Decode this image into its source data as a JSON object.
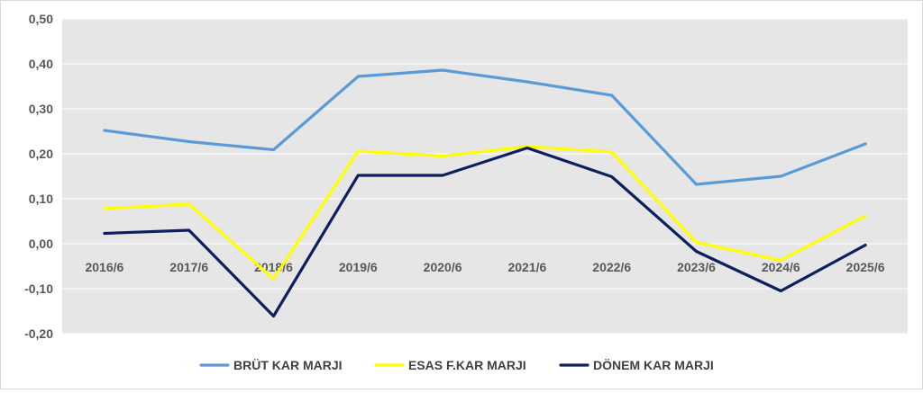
{
  "chart_data": {
    "type": "line",
    "title": "",
    "xlabel": "",
    "ylabel": "",
    "categories": [
      "2016/6",
      "2017/6",
      "2018/6",
      "2019/6",
      "2020/6",
      "2021/6",
      "2022/6",
      "2023/6",
      "2024/6",
      "2025/6"
    ],
    "ylim": [
      -0.2,
      0.5
    ],
    "yticks": [
      "-0,20",
      "-0,10",
      "0,00",
      "0,10",
      "0,20",
      "0,30",
      "0,40",
      "0,50"
    ],
    "grid": true,
    "legend_position": "bottom",
    "series": [
      {
        "name": "BRÜT KAR MARJI",
        "color": "#5b9bd5",
        "values": [
          0.252,
          0.227,
          0.209,
          0.372,
          0.386,
          0.36,
          0.33,
          0.132,
          0.15,
          0.222
        ]
      },
      {
        "name": "ESAS F.KAR MARJI",
        "color": "#ffff00",
        "values": [
          0.078,
          0.088,
          -0.078,
          0.206,
          0.195,
          0.216,
          0.204,
          0.003,
          -0.037,
          0.062
        ]
      },
      {
        "name": "DÖNEM KAR MARJI",
        "color": "#0d1f5c",
        "values": [
          0.023,
          0.03,
          -0.161,
          0.152,
          0.152,
          0.213,
          0.149,
          -0.017,
          -0.105,
          -0.003
        ]
      }
    ]
  }
}
